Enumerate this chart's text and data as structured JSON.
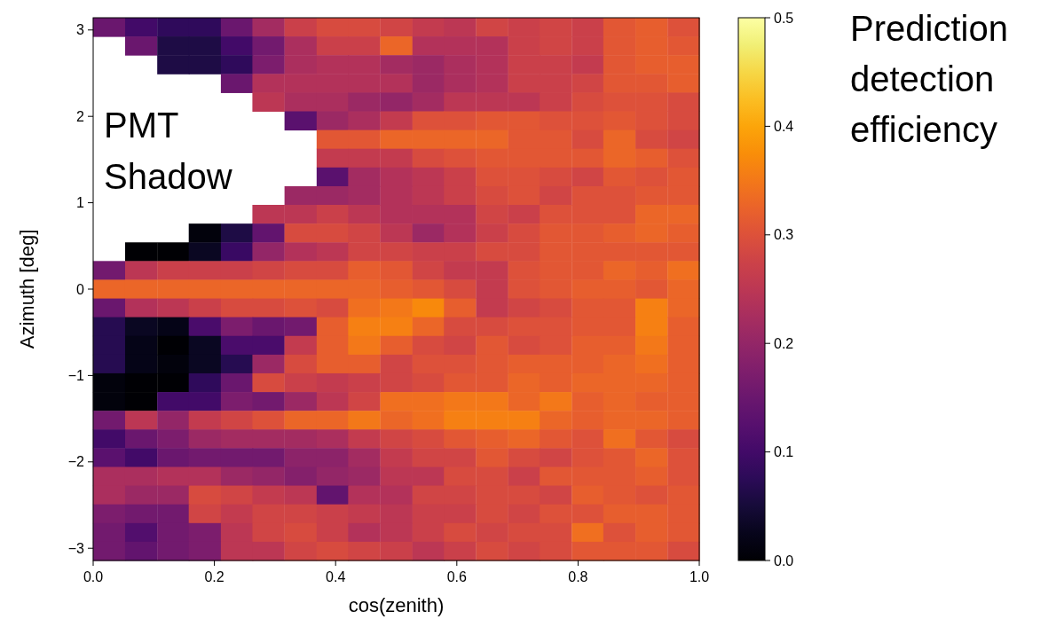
{
  "chart_data": {
    "type": "heatmap",
    "xlabel": "cos(zenith)",
    "ylabel": "Azimuth [deg]",
    "clabel": "Prediction detection efficiency",
    "annotations": [
      "PMT Shadow"
    ],
    "xlim": [
      0,
      1
    ],
    "xticks": [
      {
        "value": 0,
        "label": "0.0"
      },
      0.2,
      0.4,
      0.6,
      0.8,
      {
        "value": 1,
        "label": "1.0"
      }
    ],
    "ylim": [
      -3.1416,
      3.1416
    ],
    "yticks": [
      {
        "value": -3,
        "label": "−3"
      },
      {
        "value": -2,
        "label": "−2"
      },
      {
        "value": -1,
        "label": "−1"
      },
      0,
      1,
      2,
      3
    ],
    "clim": [
      0,
      0.5
    ],
    "cticks": [
      {
        "value": 0,
        "label": "0.0"
      },
      0.1,
      0.2,
      0.3,
      0.4,
      0.5
    ],
    "x": [
      0.026,
      0.079,
      0.132,
      0.184,
      0.237,
      0.289,
      0.342,
      0.395,
      0.447,
      0.5,
      0.553,
      0.605,
      0.658,
      0.711,
      0.763,
      0.816,
      0.868,
      0.921,
      0.974
    ],
    "y": [
      3.033,
      2.817,
      2.6,
      2.383,
      2.167,
      1.95,
      1.733,
      1.517,
      1.3,
      1.083,
      0.867,
      0.65,
      0.433,
      0.217,
      0,
      -0.217,
      -0.433,
      -0.65,
      -0.867,
      -1.083,
      -1.3,
      -1.517,
      -1.733,
      -1.95,
      -2.167,
      -2.383,
      -2.6,
      -2.817,
      -3.033
    ],
    "cells": [
      [
        0.15,
        0.1,
        0.08,
        0.08,
        0.15,
        0.22,
        0.27,
        0.29,
        0.29,
        0.28,
        0.26,
        0.25,
        0.28,
        0.27,
        0.28,
        0.27,
        0.31,
        0.32,
        0.3
      ],
      [
        null,
        0.15,
        0.06,
        0.06,
        0.1,
        0.16,
        0.23,
        0.27,
        0.27,
        0.33,
        0.24,
        0.24,
        0.24,
        0.27,
        0.28,
        0.27,
        0.31,
        0.32,
        0.31
      ],
      [
        null,
        null,
        0.06,
        0.06,
        0.08,
        0.17,
        0.23,
        0.24,
        0.24,
        0.22,
        0.21,
        0.23,
        0.24,
        0.27,
        0.27,
        0.26,
        0.31,
        0.32,
        0.32
      ],
      [
        null,
        null,
        null,
        null,
        0.15,
        0.24,
        0.24,
        0.24,
        0.24,
        0.24,
        0.21,
        0.23,
        0.24,
        0.27,
        0.27,
        0.28,
        0.31,
        0.31,
        0.32
      ],
      [
        null,
        null,
        null,
        null,
        null,
        0.25,
        0.23,
        0.23,
        0.21,
        0.2,
        0.22,
        0.25,
        0.25,
        0.25,
        0.27,
        0.29,
        0.3,
        0.3,
        0.29
      ],
      [
        null,
        null,
        null,
        null,
        null,
        null,
        0.13,
        0.21,
        0.23,
        0.26,
        0.3,
        0.3,
        0.31,
        0.31,
        0.3,
        0.3,
        0.31,
        0.3,
        0.29
      ],
      [
        null,
        null,
        null,
        null,
        null,
        null,
        null,
        0.31,
        0.31,
        0.33,
        0.33,
        0.33,
        0.33,
        0.31,
        0.31,
        0.29,
        0.33,
        0.29,
        0.28
      ],
      [
        null,
        null,
        null,
        null,
        null,
        null,
        null,
        0.26,
        0.26,
        0.26,
        0.29,
        0.3,
        0.31,
        0.31,
        0.31,
        0.31,
        0.33,
        0.32,
        0.3
      ],
      [
        null,
        null,
        null,
        null,
        null,
        null,
        null,
        0.13,
        0.22,
        0.24,
        0.25,
        0.27,
        0.3,
        0.3,
        0.29,
        0.28,
        0.31,
        0.3,
        0.31
      ],
      [
        null,
        null,
        null,
        null,
        null,
        null,
        0.21,
        0.21,
        0.22,
        0.24,
        0.25,
        0.27,
        0.29,
        0.3,
        0.28,
        0.3,
        0.3,
        0.31,
        0.31
      ],
      [
        null,
        null,
        null,
        null,
        null,
        0.25,
        0.25,
        0.27,
        0.25,
        0.24,
        0.24,
        0.24,
        0.28,
        0.27,
        0.3,
        0.3,
        0.3,
        0.33,
        0.33
      ],
      [
        null,
        null,
        null,
        0.01,
        0.06,
        0.14,
        0.29,
        0.29,
        0.28,
        0.25,
        0.21,
        0.24,
        0.27,
        0.29,
        0.31,
        0.31,
        0.32,
        0.33,
        0.32
      ],
      [
        null,
        0.0,
        0.0,
        0.03,
        0.09,
        0.2,
        0.24,
        0.25,
        0.28,
        0.28,
        0.27,
        0.27,
        0.29,
        0.29,
        0.31,
        0.31,
        0.31,
        0.31,
        0.31
      ],
      [
        0.16,
        0.25,
        0.27,
        0.27,
        0.27,
        0.28,
        0.29,
        0.29,
        0.32,
        0.31,
        0.28,
        0.26,
        0.26,
        0.3,
        0.31,
        0.31,
        0.33,
        0.32,
        0.34
      ],
      [
        0.33,
        0.33,
        0.33,
        0.33,
        0.33,
        0.33,
        0.33,
        0.33,
        0.33,
        0.32,
        0.31,
        0.29,
        0.26,
        0.3,
        0.31,
        0.32,
        0.32,
        0.31,
        0.33
      ],
      [
        0.15,
        0.24,
        0.25,
        0.27,
        0.29,
        0.29,
        0.3,
        0.29,
        0.34,
        0.35,
        0.37,
        0.32,
        0.26,
        0.28,
        0.29,
        0.31,
        0.31,
        0.36,
        0.33
      ],
      [
        0.07,
        0.03,
        0.02,
        0.11,
        0.17,
        0.15,
        0.16,
        0.32,
        0.36,
        0.36,
        0.33,
        0.29,
        0.29,
        0.3,
        0.3,
        0.31,
        0.31,
        0.36,
        0.32
      ],
      [
        0.07,
        0.02,
        0.0,
        0.03,
        0.11,
        0.11,
        0.26,
        0.32,
        0.35,
        0.32,
        0.29,
        0.28,
        0.31,
        0.29,
        0.3,
        0.32,
        0.32,
        0.35,
        0.32
      ],
      [
        0.07,
        0.02,
        0.01,
        0.03,
        0.07,
        0.21,
        0.29,
        0.32,
        0.32,
        0.28,
        0.3,
        0.3,
        0.31,
        0.32,
        0.32,
        0.32,
        0.33,
        0.34,
        0.32
      ],
      [
        0.01,
        0.0,
        0.0,
        0.08,
        0.15,
        0.29,
        0.27,
        0.26,
        0.27,
        0.28,
        0.29,
        0.31,
        0.31,
        0.33,
        0.32,
        0.33,
        0.33,
        0.33,
        0.32
      ],
      [
        0.01,
        0.0,
        0.1,
        0.1,
        0.17,
        0.16,
        0.21,
        0.25,
        0.28,
        0.34,
        0.34,
        0.35,
        0.35,
        0.33,
        0.35,
        0.32,
        0.33,
        0.32,
        0.32
      ],
      [
        0.16,
        0.25,
        0.2,
        0.26,
        0.28,
        0.3,
        0.33,
        0.33,
        0.35,
        0.33,
        0.34,
        0.36,
        0.36,
        0.36,
        0.33,
        0.32,
        0.33,
        0.33,
        0.32
      ],
      [
        0.1,
        0.15,
        0.17,
        0.21,
        0.22,
        0.22,
        0.22,
        0.23,
        0.26,
        0.28,
        0.29,
        0.31,
        0.32,
        0.33,
        0.31,
        0.3,
        0.34,
        0.31,
        0.29
      ],
      [
        0.13,
        0.1,
        0.15,
        0.16,
        0.16,
        0.16,
        0.19,
        0.19,
        0.22,
        0.26,
        0.28,
        0.28,
        0.31,
        0.29,
        0.28,
        0.3,
        0.31,
        0.33,
        0.3
      ],
      [
        0.23,
        0.23,
        0.24,
        0.24,
        0.21,
        0.2,
        0.18,
        0.2,
        0.21,
        0.25,
        0.25,
        0.29,
        0.29,
        0.27,
        0.31,
        0.31,
        0.31,
        0.32,
        0.3
      ],
      [
        0.23,
        0.21,
        0.21,
        0.29,
        0.28,
        0.26,
        0.25,
        0.14,
        0.24,
        0.24,
        0.28,
        0.28,
        0.29,
        0.29,
        0.28,
        0.32,
        0.31,
        0.3,
        0.31
      ],
      [
        0.17,
        0.16,
        0.16,
        0.28,
        0.26,
        0.28,
        0.28,
        0.27,
        0.26,
        0.25,
        0.27,
        0.27,
        0.29,
        0.28,
        0.3,
        0.3,
        0.32,
        0.32,
        0.31
      ],
      [
        0.16,
        0.12,
        0.16,
        0.17,
        0.25,
        0.28,
        0.29,
        0.27,
        0.24,
        0.25,
        0.27,
        0.29,
        0.28,
        0.29,
        0.29,
        0.34,
        0.3,
        0.32,
        0.31
      ],
      [
        0.16,
        0.14,
        0.16,
        0.17,
        0.25,
        0.25,
        0.28,
        0.29,
        0.28,
        0.27,
        0.25,
        0.27,
        0.29,
        0.28,
        0.29,
        0.31,
        0.31,
        0.31,
        0.29
      ]
    ]
  }
}
